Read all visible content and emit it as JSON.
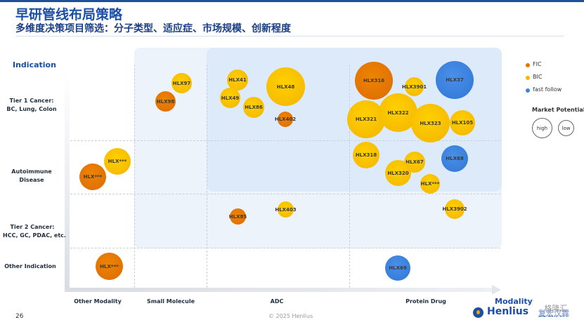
{
  "header": {
    "title": "早研管线布局策略",
    "subtitle": "多维度决策项目筛选：分子类型、适应症、市场规模、创新程度"
  },
  "axes": {
    "y_title": "Indication",
    "x_title": "Modality",
    "rows": [
      {
        "id": "tier1",
        "line1": "Tier 1 Cancer:",
        "line2": "BC, Lung, Colon"
      },
      {
        "id": "autoimmune",
        "line1": "Autoimmune",
        "line2": "Disease"
      },
      {
        "id": "tier2",
        "line1": "Tier 2 Cancer:",
        "line2": "HCC, GC, PDAC, etc."
      },
      {
        "id": "other",
        "line1": "Other Indication",
        "line2": ""
      }
    ],
    "columns": [
      "Other Modality",
      "Small Molecule",
      "ADC",
      "Protein Drug"
    ]
  },
  "legend": {
    "fic": {
      "label": "FIC",
      "color": "#e87400"
    },
    "bic": {
      "label": "BIC",
      "color": "#f4b800"
    },
    "ff": {
      "label": "fast follow",
      "color": "#3a86e0"
    },
    "market_title": "Market Potential",
    "high": "high",
    "low": "low"
  },
  "bubbles": [
    {
      "label": "HLX97",
      "class": "bic",
      "modality": "Small Molecule",
      "indication": "Tier 1 Cancer"
    },
    {
      "label": "HLX98",
      "class": "fic",
      "modality": "Small Molecule",
      "indication": "Tier 1 Cancer"
    },
    {
      "label": "HLX41",
      "class": "bic",
      "modality": "ADC",
      "indication": "Tier 1 Cancer"
    },
    {
      "label": "HLX49",
      "class": "bic",
      "modality": "ADC",
      "indication": "Tier 1 Cancer"
    },
    {
      "label": "HLX48",
      "class": "bic",
      "modality": "ADC",
      "indication": "Tier 1 Cancer"
    },
    {
      "label": "HLX86",
      "class": "bic",
      "modality": "ADC",
      "indication": "Tier 1 Cancer"
    },
    {
      "label": "HLX402",
      "class": "fic",
      "modality": "ADC",
      "indication": "Tier 1 Cancer"
    },
    {
      "label": "HLX316",
      "class": "fic",
      "modality": "Protein Drug",
      "indication": "Tier 1 Cancer"
    },
    {
      "label": "HLX3901",
      "class": "bic",
      "modality": "Protein Drug",
      "indication": "Tier 1 Cancer"
    },
    {
      "label": "HLX37",
      "class": "ff",
      "modality": "Protein Drug",
      "indication": "Tier 1 Cancer"
    },
    {
      "label": "HLX321",
      "class": "bic",
      "modality": "Protein Drug",
      "indication": "Tier 1 Cancer"
    },
    {
      "label": "HLX322",
      "class": "bic",
      "modality": "Protein Drug",
      "indication": "Tier 1 Cancer"
    },
    {
      "label": "HLX323",
      "class": "bic",
      "modality": "Protein Drug",
      "indication": "Tier 1 Cancer"
    },
    {
      "label": "HLX105",
      "class": "bic",
      "modality": "Protein Drug",
      "indication": "Tier 1 Cancer"
    },
    {
      "label": "HLX***",
      "class": "bic",
      "modality": "Other Modality",
      "indication": "Autoimmune Disease"
    },
    {
      "label": "HLX***",
      "class": "fic",
      "modality": "Other Modality",
      "indication": "Autoimmune Disease"
    },
    {
      "label": "HLX318",
      "class": "bic",
      "modality": "Protein Drug",
      "indication": "Autoimmune Disease"
    },
    {
      "label": "HLX67",
      "class": "bic",
      "modality": "Protein Drug",
      "indication": "Autoimmune Disease"
    },
    {
      "label": "HLX68",
      "class": "ff",
      "modality": "Protein Drug",
      "indication": "Autoimmune Disease"
    },
    {
      "label": "HLX320",
      "class": "bic",
      "modality": "Protein Drug",
      "indication": "Autoimmune Disease"
    },
    {
      "label": "HLX***",
      "class": "bic",
      "modality": "Protein Drug",
      "indication": "Autoimmune Disease"
    },
    {
      "label": "HLX85",
      "class": "fic",
      "modality": "ADC",
      "indication": "Tier 2 Cancer"
    },
    {
      "label": "HLX403",
      "class": "bic",
      "modality": "ADC",
      "indication": "Tier 2 Cancer"
    },
    {
      "label": "HLX3902",
      "class": "bic",
      "modality": "Protein Drug",
      "indication": "Tier 2 Cancer"
    },
    {
      "label": "HLX***",
      "class": "fic",
      "modality": "Other Modality",
      "indication": "Other Indication"
    },
    {
      "label": "HLX69",
      "class": "ff",
      "modality": "Protein Drug",
      "indication": "Other Indication"
    }
  ],
  "footer": {
    "page": "26",
    "copyright": "© 2025 Henlius",
    "logo_en": "Henlius",
    "logo_cn": "复宏汉霖",
    "watermark": "格隆汇"
  }
}
